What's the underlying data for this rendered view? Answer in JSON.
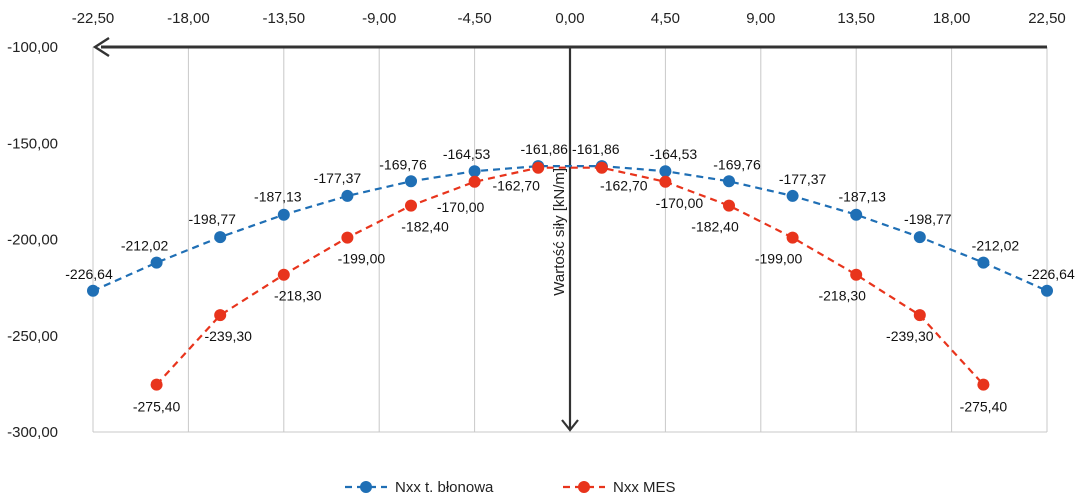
{
  "chart_data": {
    "type": "line",
    "xlabel": "",
    "ylabel": "Wartość siły [kN/m]",
    "xlim": [
      -22.5,
      22.5
    ],
    "ylim": [
      -300,
      -100
    ],
    "x_ticks": [
      "-22,50",
      "-18,00",
      "-13,50",
      "-9,00",
      "-4,50",
      "0,00",
      "4,50",
      "9,00",
      "13,50",
      "18,00",
      "22,50"
    ],
    "y_ticks": [
      "-100,00",
      "-150,00",
      "-200,00",
      "-250,00",
      "-300,00"
    ],
    "x_tick_values": [
      -22.5,
      -18,
      -13.5,
      -9,
      -4.5,
      0,
      4.5,
      9,
      13.5,
      18,
      22.5
    ],
    "y_tick_values": [
      -100,
      -150,
      -200,
      -250,
      -300
    ],
    "x_axis_position": "top",
    "grid": "vertical",
    "legend": "bottom",
    "series": [
      {
        "name": "Nxx t. błonowa",
        "color": "#1f6fb5",
        "x": [
          -22.5,
          -19.5,
          -16.5,
          -13.5,
          -10.5,
          -7.5,
          -4.5,
          -1.5,
          1.5,
          4.5,
          7.5,
          10.5,
          13.5,
          16.5,
          19.5,
          22.5
        ],
        "values": [
          -226.64,
          -212.02,
          -198.77,
          -187.13,
          -177.37,
          -169.76,
          -164.53,
          -161.86,
          -161.86,
          -164.53,
          -169.76,
          -177.37,
          -187.13,
          -198.77,
          -212.02,
          -226.64
        ],
        "labels": [
          "-226,64",
          "-212,02",
          "-198,77",
          "-187,13",
          "-177,37",
          "-169,76",
          "-164,53",
          "-161,86",
          "-161,86",
          "-164,53",
          "-169,76",
          "-177,37",
          "-187,13",
          "-198,77",
          "-212,02",
          "-226,64"
        ]
      },
      {
        "name": "Nxx MES",
        "color": "#e8341c",
        "x": [
          -19.5,
          -16.5,
          -13.5,
          -10.5,
          -7.5,
          -4.5,
          -1.5,
          1.5,
          4.5,
          7.5,
          10.5,
          13.5,
          16.5,
          19.5
        ],
        "values": [
          -275.4,
          -239.3,
          -218.3,
          -199.0,
          -182.4,
          -170.0,
          -162.7,
          -162.7,
          -170.0,
          -182.4,
          -199.0,
          -218.3,
          -239.3,
          -275.4
        ],
        "labels": [
          "-275,40",
          "-239,30",
          "-218,30",
          "-199,00",
          "-182,40",
          "-170,00",
          "-162,70",
          "-162,70",
          "-170,00",
          "-182,40",
          "-199,00",
          "-218,30",
          "-239,30",
          "-275,40"
        ]
      }
    ]
  }
}
